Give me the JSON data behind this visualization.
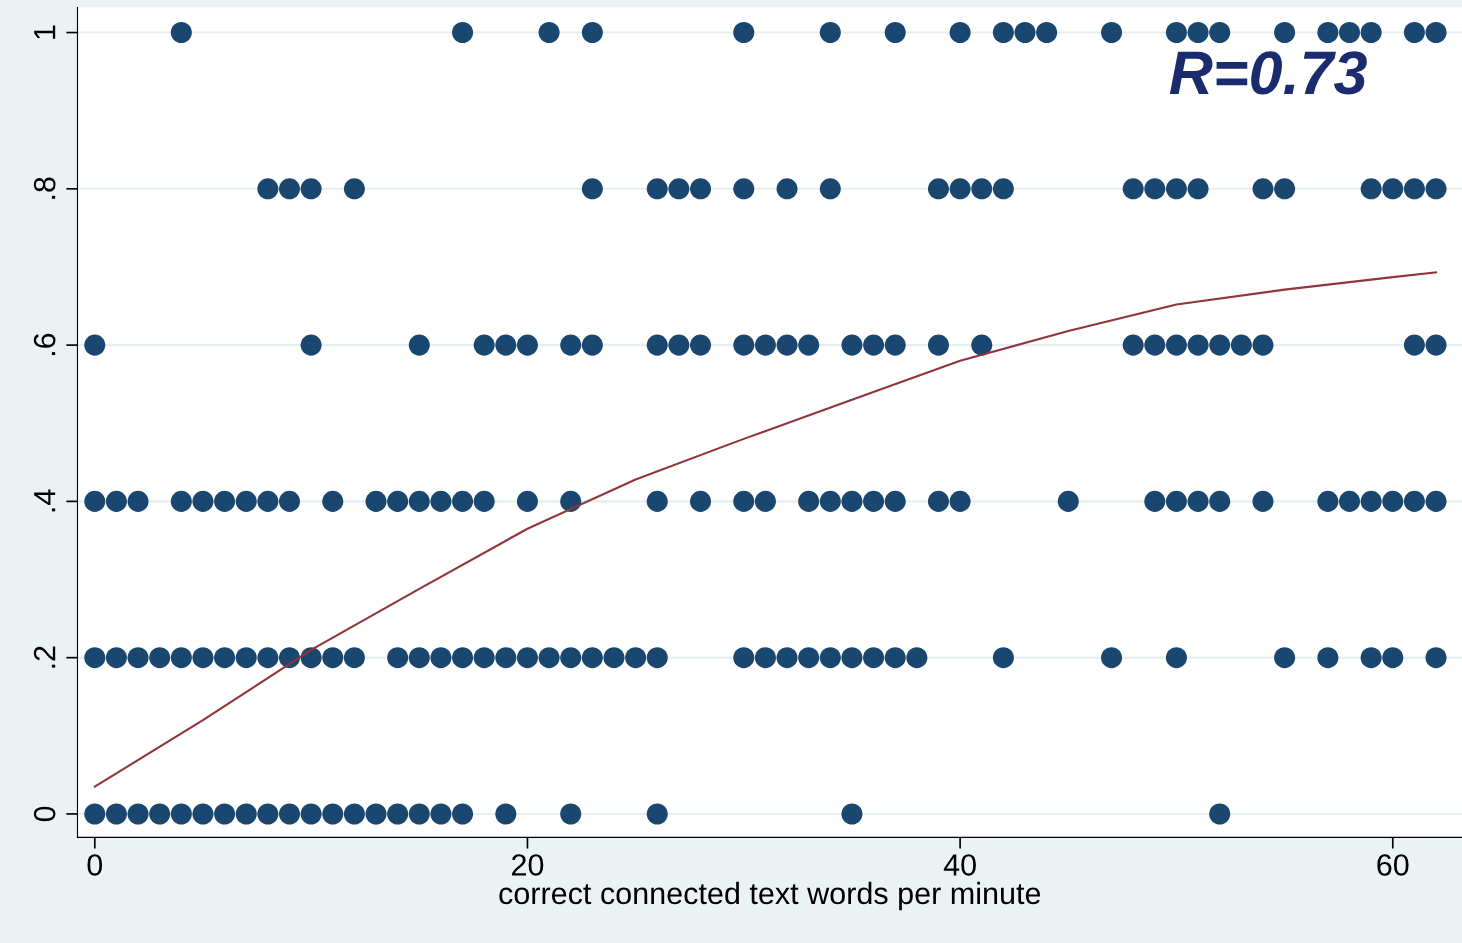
{
  "chart_data": {
    "type": "scatter",
    "xlabel": "correct connected text words per minute",
    "annotations": [
      "R=0.73"
    ],
    "series": [
      {
        "color": "#1a476f",
        "marker": "circle",
        "x": [
          4,
          17,
          21,
          23,
          30,
          34,
          37,
          40,
          42,
          43,
          44,
          47,
          50,
          51,
          52,
          55,
          57,
          58,
          59,
          61,
          62
        ],
        "values": [
          1,
          1,
          1,
          1,
          1,
          1,
          1,
          1,
          1,
          1,
          1,
          1,
          1,
          1,
          1,
          1,
          1,
          1,
          1,
          1,
          1
        ]
      },
      {
        "color": "#1a476f",
        "marker": "circle",
        "x": [
          8,
          9,
          10,
          12,
          23,
          26,
          27,
          28,
          30,
          32,
          34,
          39,
          40,
          41,
          42,
          48,
          49,
          50,
          51,
          54,
          55,
          59,
          60,
          61,
          62
        ],
        "values": [
          0.8,
          0.8,
          0.8,
          0.8,
          0.8,
          0.8,
          0.8,
          0.8,
          0.8,
          0.8,
          0.8,
          0.8,
          0.8,
          0.8,
          0.8,
          0.8,
          0.8,
          0.8,
          0.8,
          0.8,
          0.8,
          0.8,
          0.8,
          0.8,
          0.8
        ]
      },
      {
        "color": "#1a476f",
        "marker": "circle",
        "x": [
          0,
          10,
          15,
          18,
          19,
          20,
          22,
          23,
          26,
          27,
          28,
          30,
          31,
          32,
          33,
          35,
          36,
          37,
          39,
          41,
          48,
          49,
          50,
          51,
          52,
          53,
          54,
          61,
          62
        ],
        "values": [
          0.6,
          0.6,
          0.6,
          0.6,
          0.6,
          0.6,
          0.6,
          0.6,
          0.6,
          0.6,
          0.6,
          0.6,
          0.6,
          0.6,
          0.6,
          0.6,
          0.6,
          0.6,
          0.6,
          0.6,
          0.6,
          0.6,
          0.6,
          0.6,
          0.6,
          0.6,
          0.6,
          0.6,
          0.6
        ]
      },
      {
        "color": "#1a476f",
        "marker": "circle",
        "x": [
          0,
          1,
          2,
          4,
          5,
          6,
          7,
          8,
          9,
          11,
          13,
          14,
          15,
          16,
          17,
          18,
          20,
          22,
          26,
          28,
          30,
          31,
          33,
          34,
          35,
          36,
          37,
          39,
          40,
          45,
          49,
          50,
          51,
          52,
          54,
          57,
          58,
          59,
          60,
          61,
          62
        ],
        "values": [
          0.4,
          0.4,
          0.4,
          0.4,
          0.4,
          0.4,
          0.4,
          0.4,
          0.4,
          0.4,
          0.4,
          0.4,
          0.4,
          0.4,
          0.4,
          0.4,
          0.4,
          0.4,
          0.4,
          0.4,
          0.4,
          0.4,
          0.4,
          0.4,
          0.4,
          0.4,
          0.4,
          0.4,
          0.4,
          0.4,
          0.4,
          0.4,
          0.4,
          0.4,
          0.4,
          0.4,
          0.4,
          0.4,
          0.4,
          0.4,
          0.4
        ]
      },
      {
        "color": "#1a476f",
        "marker": "circle",
        "x": [
          0,
          1,
          2,
          3,
          4,
          5,
          6,
          7,
          8,
          9,
          10,
          11,
          12,
          14,
          15,
          16,
          17,
          18,
          19,
          20,
          21,
          22,
          23,
          24,
          25,
          26,
          30,
          31,
          32,
          33,
          34,
          35,
          36,
          37,
          38,
          42,
          47,
          50,
          55,
          57,
          59,
          60,
          62
        ],
        "values": [
          0.2,
          0.2,
          0.2,
          0.2,
          0.2,
          0.2,
          0.2,
          0.2,
          0.2,
          0.2,
          0.2,
          0.2,
          0.2,
          0.2,
          0.2,
          0.2,
          0.2,
          0.2,
          0.2,
          0.2,
          0.2,
          0.2,
          0.2,
          0.2,
          0.2,
          0.2,
          0.2,
          0.2,
          0.2,
          0.2,
          0.2,
          0.2,
          0.2,
          0.2,
          0.2,
          0.2,
          0.2,
          0.2,
          0.2,
          0.2,
          0.2,
          0.2,
          0.2
        ]
      },
      {
        "color": "#1a476f",
        "marker": "circle",
        "x": [
          0,
          1,
          2,
          3,
          4,
          5,
          6,
          7,
          8,
          9,
          10,
          11,
          12,
          13,
          14,
          15,
          16,
          17,
          19,
          22,
          26,
          35,
          52
        ],
        "values": [
          0,
          0,
          0,
          0,
          0,
          0,
          0,
          0,
          0,
          0,
          0,
          0,
          0,
          0,
          0,
          0,
          0,
          0,
          0,
          0,
          0,
          0,
          0
        ]
      },
      {
        "type": "line",
        "color": "#90353b",
        "marker": "none",
        "line_style": "solid",
        "x": [
          0,
          5,
          10,
          15,
          20,
          25,
          30,
          35,
          40,
          45,
          50,
          55,
          60,
          62
        ],
        "values": [
          0.035,
          0.12,
          0.21,
          0.288,
          0.365,
          0.428,
          0.48,
          0.53,
          0.58,
          0.618,
          0.652,
          0.671,
          0.687,
          0.693
        ]
      }
    ],
    "xlim": [
      -0.8,
      63.2
    ],
    "xticks": [
      0,
      20,
      40,
      60
    ],
    "ylim": [
      -0.03,
      1.032
    ],
    "yticks": [
      0,
      {
        "value": 0.2,
        "label": ".2"
      },
      {
        "value": 0.4,
        "label": ".4"
      },
      {
        "value": 0.6,
        "label": ".6"
      },
      {
        "value": 0.8,
        "label": ".8"
      },
      1
    ],
    "grid": "y",
    "legend": false
  }
}
